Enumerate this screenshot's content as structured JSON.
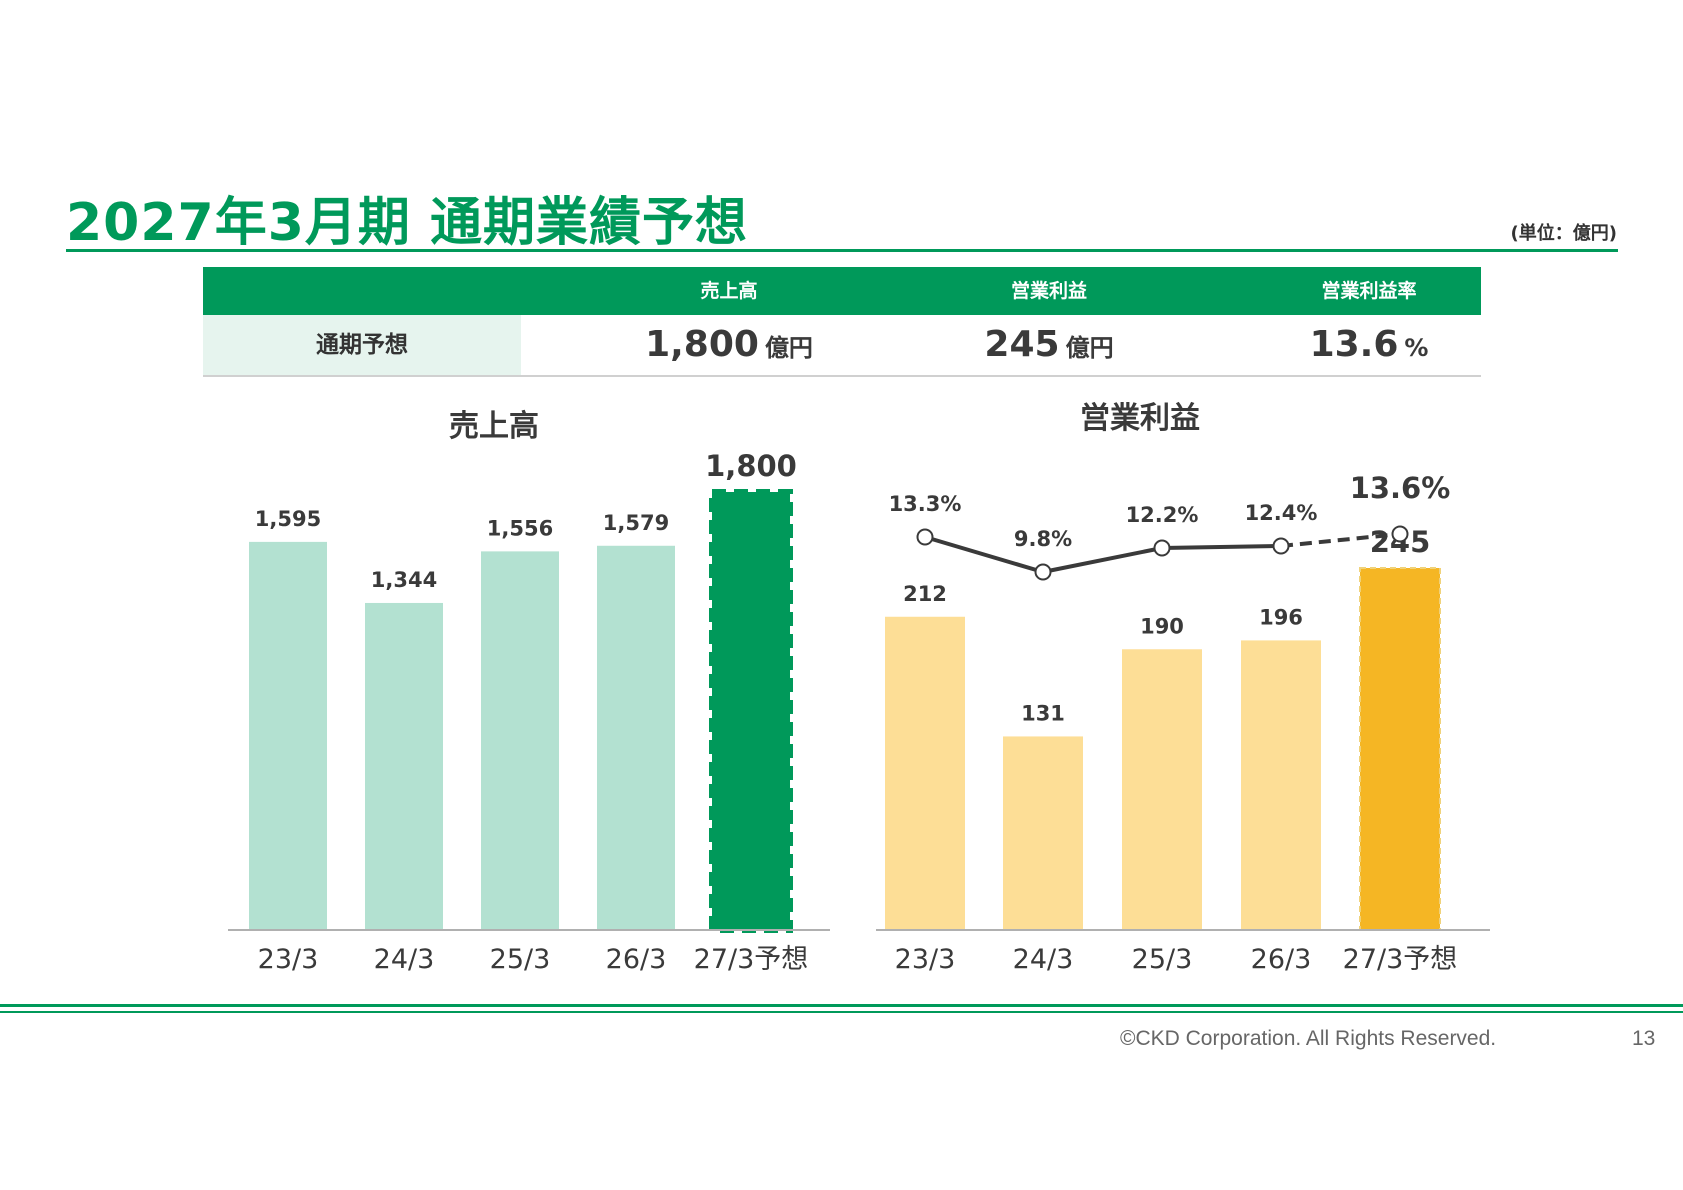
{
  "title": "2027年3月期 通期業績予想",
  "unit_note": "(単位：億円)",
  "summary": {
    "headers": [
      "売上高",
      "営業利益",
      "営業利益率"
    ],
    "row_label": "通期予想",
    "values": [
      {
        "value": "1,800",
        "unit": "億円"
      },
      {
        "value": "245",
        "unit": "億円"
      },
      {
        "value": "13.6",
        "unit": "%"
      }
    ]
  },
  "chart_data": [
    {
      "type": "bar",
      "title": "売上高",
      "categories": [
        "23/3",
        "24/3",
        "25/3",
        "26/3",
        "27/3予想"
      ],
      "series": [
        {
          "values": [
            1595,
            1344,
            1556,
            1579,
            1800
          ]
        }
      ],
      "data_labels": [
        "1,595",
        "1,344",
        "1,556",
        "1,579",
        "1,800"
      ],
      "forecast_index": 4,
      "colors": {
        "actual": "#b3e1d1",
        "forecast": "#00995a"
      }
    },
    {
      "type": "bar",
      "title": "営業利益",
      "categories": [
        "23/3",
        "24/3",
        "25/3",
        "26/3",
        "27/3予想"
      ],
      "series": [
        {
          "values": [
            212,
            131,
            190,
            196,
            245
          ]
        }
      ],
      "data_labels": [
        "212",
        "131",
        "190",
        "196",
        "245"
      ],
      "forecast_index": 4,
      "colors": {
        "actual": "#fdde96",
        "forecast": "#f5b624",
        "line": "#3a3a3a"
      },
      "margin_line": {
        "values": [
          13.3,
          9.8,
          12.2,
          12.4,
          13.6
        ],
        "labels": [
          "13.3%",
          "9.8%",
          "12.2%",
          "12.4%",
          "13.6%"
        ]
      }
    }
  ],
  "footer": {
    "copyright": "©CKD Corporation. All Rights Reserved.",
    "page": "13"
  }
}
